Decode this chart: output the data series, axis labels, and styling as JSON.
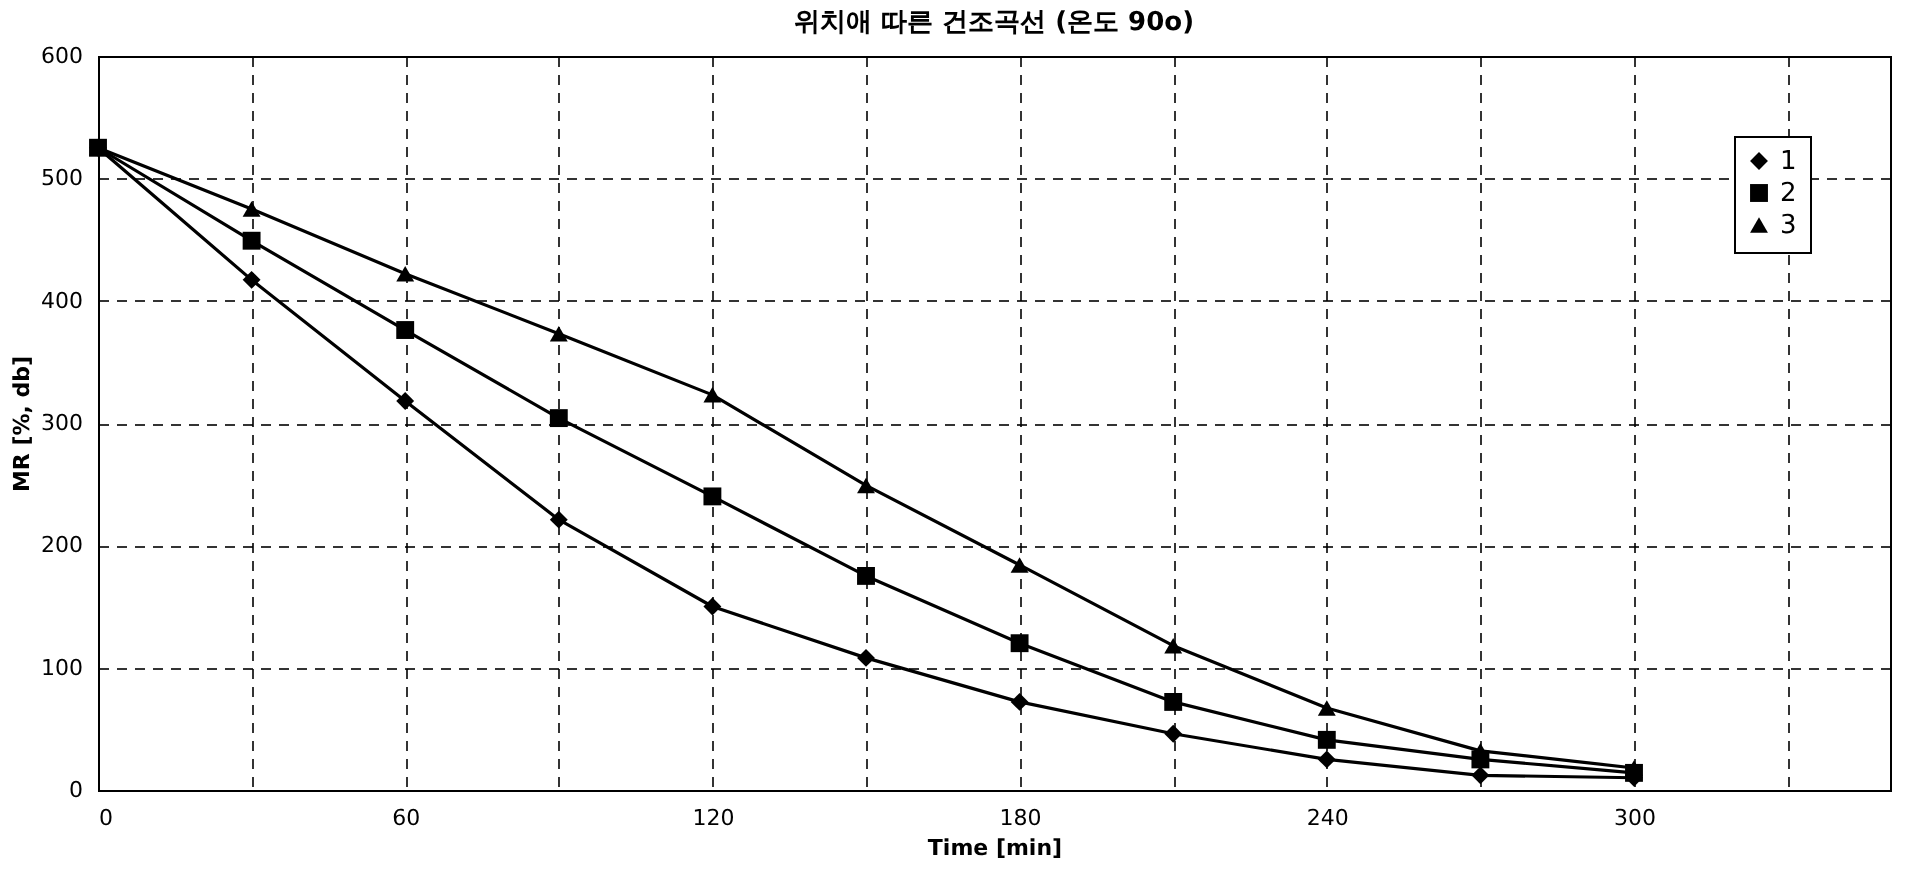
{
  "chart_data": {
    "type": "line",
    "title": "위치애 따른 건조곡선 (온도 90o)",
    "xlabel": "Time [min]",
    "ylabel": "MR [%, db]",
    "x": [
      0,
      30,
      60,
      90,
      120,
      150,
      180,
      210,
      240,
      270,
      300
    ],
    "series": [
      {
        "name": "1",
        "color": "#000000",
        "marker": "diamond",
        "values": [
          525,
          417,
          318,
          221,
          150,
          108,
          72,
          46,
          25,
          12,
          10
        ]
      },
      {
        "name": "2",
        "color": "#000000",
        "marker": "square",
        "values": [
          525,
          449,
          376,
          304,
          240,
          175,
          120,
          72,
          41,
          25,
          14
        ]
      },
      {
        "name": "3",
        "color": "#000000",
        "marker": "triangle",
        "values": [
          525,
          475,
          422,
          373,
          323,
          249,
          184,
          118,
          67,
          32,
          18
        ]
      }
    ],
    "xlim": [
      0,
      350
    ],
    "xticks": [
      0,
      {
        "value": 30,
        "label": null
      },
      60,
      {
        "value": 90,
        "label": null
      },
      120,
      {
        "value": 150,
        "label": null
      },
      180,
      {
        "value": 210,
        "label": null
      },
      240,
      {
        "value": 270,
        "label": null
      },
      300,
      {
        "value": 330,
        "label": null
      }
    ],
    "ylim": [
      0,
      600
    ],
    "yticks": [
      0,
      100,
      200,
      300,
      400,
      500,
      600
    ],
    "grid": true,
    "line_style": "solid",
    "legend": "top right"
  }
}
